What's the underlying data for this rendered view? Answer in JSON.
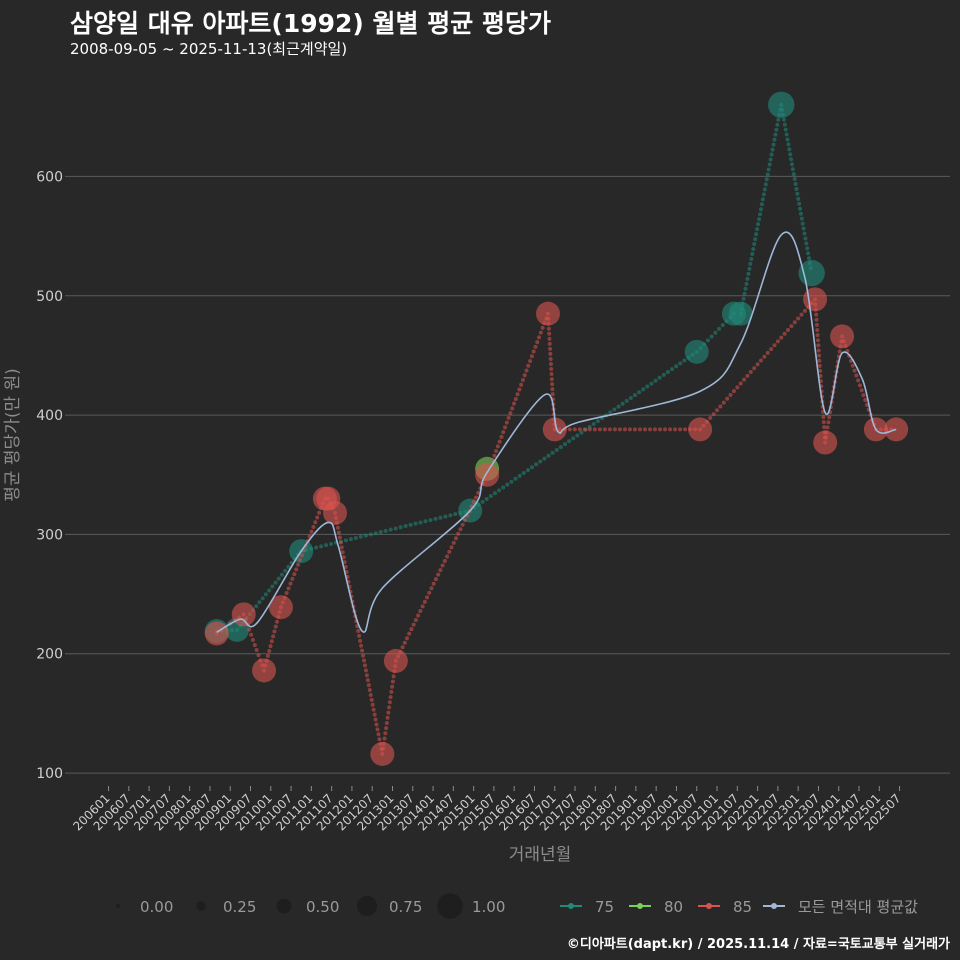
{
  "header": {
    "title": "삼양일 대유 아파트(1992) 월별 평균 평당가",
    "subtitle": "2008-09-05 ~ 2025-11-13(최근계약일)"
  },
  "footer": {
    "credit": "©디아파트(dapt.kr) / 2025.11.14 / 자료=국토교통부 실거래가"
  },
  "colors": {
    "background": "#282828",
    "grid": "#5a5a5a",
    "s75": "#1f8a7a",
    "s80": "#7ccf5a",
    "s85": "#d9534f",
    "avg": "#9fb8d8"
  },
  "chart_data": {
    "type": "line",
    "title": "삼양일 대유 아파트(1992) 월별 평균 평당가",
    "xlabel": "거래년월",
    "ylabel": "평균 평당가(만 원)",
    "ylim": [
      90,
      685
    ],
    "yticks": [
      100,
      200,
      300,
      400,
      500,
      600
    ],
    "xlim": [
      "200601",
      "202601"
    ],
    "x_tick_labels": [
      "200601",
      "200607",
      "200701",
      "200707",
      "200801",
      "200807",
      "200901",
      "200907",
      "201001",
      "201007",
      "201101",
      "201107",
      "201201",
      "201207",
      "201301",
      "201307",
      "201401",
      "201407",
      "201501",
      "201507",
      "201601",
      "201607",
      "201701",
      "201707",
      "201801",
      "201807",
      "201901",
      "201907",
      "202001",
      "202007",
      "202101",
      "202107",
      "202201",
      "202207",
      "202301",
      "202307",
      "202401",
      "202407",
      "202501",
      "202507"
    ],
    "series": [
      {
        "name": "75",
        "color_key": "s75",
        "points": [
          {
            "x": "200809",
            "y": 219,
            "size": 0.5
          },
          {
            "x": "200903",
            "y": 220,
            "size": 0.5
          },
          {
            "x": "201010",
            "y": 286,
            "size": 0.5
          },
          {
            "x": "201412",
            "y": 320,
            "size": 0.5
          },
          {
            "x": "202007",
            "y": 453,
            "size": 0.5
          },
          {
            "x": "202106",
            "y": 485,
            "size": 0.5
          },
          {
            "x": "202108",
            "y": 485,
            "size": 0.5
          },
          {
            "x": "202208",
            "y": 660,
            "size": 0.6
          },
          {
            "x": "202305",
            "y": 519,
            "size": 0.6
          }
        ]
      },
      {
        "name": "80",
        "color_key": "s80",
        "points": [
          {
            "x": "201505",
            "y": 355,
            "size": 0.5
          }
        ]
      },
      {
        "name": "85",
        "color_key": "s85",
        "points": [
          {
            "x": "200809",
            "y": 217,
            "size": 0.5
          },
          {
            "x": "200905",
            "y": 233,
            "size": 0.5
          },
          {
            "x": "200911",
            "y": 186,
            "size": 0.5
          },
          {
            "x": "201004",
            "y": 239,
            "size": 0.5
          },
          {
            "x": "201105",
            "y": 330,
            "size": 0.5
          },
          {
            "x": "201106",
            "y": 330,
            "size": 0.5
          },
          {
            "x": "201108",
            "y": 318,
            "size": 0.5
          },
          {
            "x": "201210",
            "y": 116,
            "size": 0.5
          },
          {
            "x": "201302",
            "y": 194,
            "size": 0.5
          },
          {
            "x": "201505",
            "y": 350,
            "size": 0.5
          },
          {
            "x": "201611",
            "y": 485,
            "size": 0.5
          },
          {
            "x": "201701",
            "y": 388,
            "size": 0.5
          },
          {
            "x": "202008",
            "y": 388,
            "size": 0.5
          },
          {
            "x": "202306",
            "y": 497,
            "size": 0.5
          },
          {
            "x": "202309",
            "y": 377,
            "size": 0.5
          },
          {
            "x": "202402",
            "y": 466,
            "size": 0.5
          },
          {
            "x": "202412",
            "y": 388,
            "size": 0.5
          },
          {
            "x": "202506",
            "y": 388,
            "size": 0.5
          }
        ]
      },
      {
        "name": "모든 면적대 평균값",
        "color_key": "avg",
        "points": [
          {
            "x": "200809",
            "y": 218
          },
          {
            "x": "200904",
            "y": 229
          },
          {
            "x": "200909",
            "y": 226
          },
          {
            "x": "201010",
            "y": 286
          },
          {
            "x": "201106",
            "y": 310
          },
          {
            "x": "201109",
            "y": 290
          },
          {
            "x": "201204",
            "y": 219
          },
          {
            "x": "201210",
            "y": 255
          },
          {
            "x": "201412",
            "y": 320
          },
          {
            "x": "201505",
            "y": 352
          },
          {
            "x": "201610",
            "y": 417
          },
          {
            "x": "201702",
            "y": 386
          },
          {
            "x": "201708",
            "y": 394
          },
          {
            "x": "202008",
            "y": 420
          },
          {
            "x": "202108",
            "y": 460
          },
          {
            "x": "202208",
            "y": 551
          },
          {
            "x": "202303",
            "y": 515
          },
          {
            "x": "202309",
            "y": 402
          },
          {
            "x": "202402",
            "y": 452
          },
          {
            "x": "202408",
            "y": 430
          },
          {
            "x": "202412",
            "y": 388
          },
          {
            "x": "202506",
            "y": 388
          }
        ]
      }
    ],
    "legend": {
      "size_title_values": [
        "0.00",
        "0.25",
        "0.50",
        "0.75",
        "1.00"
      ],
      "series_labels": [
        "75",
        "80",
        "85",
        "모든 면적대 평균값"
      ],
      "placement": "bottom"
    }
  }
}
